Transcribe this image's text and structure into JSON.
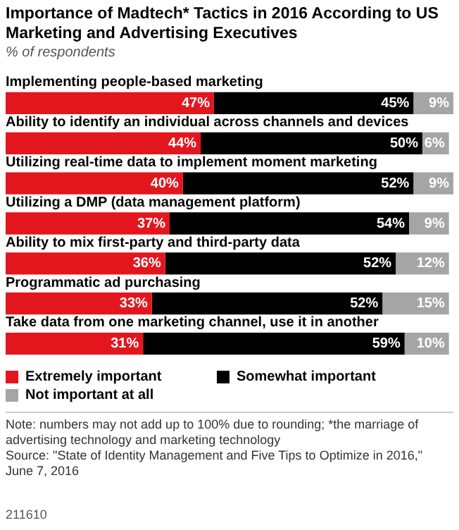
{
  "chart_data": {
    "type": "bar",
    "orientation": "horizontal",
    "stacked": true,
    "legend": "bottom",
    "title": "Importance of Madtech* Tactics in 2016 According to US Marketing and Advertising Executives",
    "subtitle": "% of respondents",
    "categories": [
      "Implementing people-based marketing",
      "Ability to identify an individual across channels and devices",
      "Utilizing real-time data to implement moment marketing",
      "Utilizing a DMP (data management platform)",
      "Ability to mix first-party and third-party data",
      "Programmatic ad purchasing",
      "Take data from one marketing channel, use it in another"
    ],
    "series": [
      {
        "name": "Extremely important",
        "color": "#e3161e",
        "values": [
          47,
          44,
          40,
          37,
          36,
          33,
          31
        ],
        "value_labels": [
          "47%",
          "44%",
          "40%",
          "37%",
          "36%",
          "33%",
          "31%"
        ]
      },
      {
        "name": "Somewhat important",
        "color": "#000000",
        "values": [
          45,
          50,
          52,
          54,
          52,
          52,
          59
        ],
        "value_labels": [
          "45%",
          "50%",
          "52%",
          "54%",
          "52%",
          "52%",
          "59%"
        ]
      },
      {
        "name": "Not important at all",
        "color": "#a5a5a5",
        "values": [
          9,
          6,
          9,
          9,
          12,
          15,
          10
        ],
        "value_labels": [
          "9%",
          "6%",
          "9%",
          "9%",
          "12%",
          "15%",
          "10%"
        ]
      }
    ],
    "annotations": [
      "Note: numbers may not add up to 100% due to rounding; *the marriage of advertising technology and marketing technology",
      "Source: \"State of Identity Management and Five Tips to Optimize in 2016,\" June 7, 2016",
      "211610"
    ]
  }
}
